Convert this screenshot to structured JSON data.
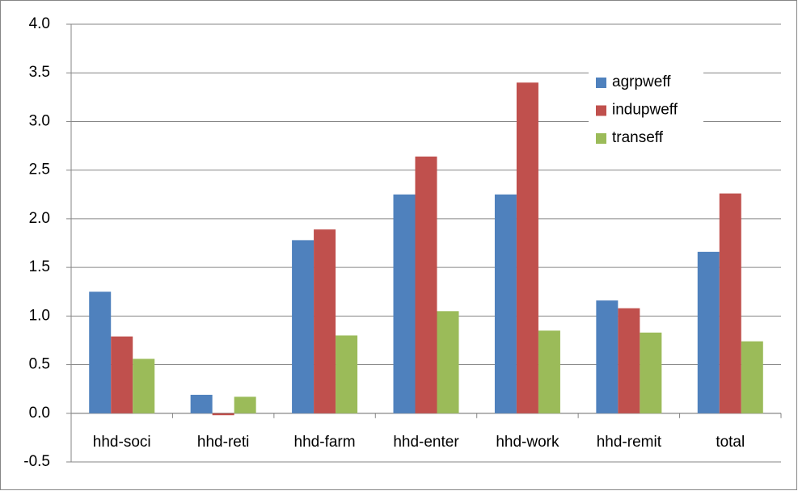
{
  "chart_data": {
    "type": "bar",
    "categories": [
      "hhd-soci",
      "hhd-reti",
      "hhd-farm",
      "hhd-enter",
      "hhd-work",
      "hhd-remit",
      "total"
    ],
    "series": [
      {
        "name": "agrpweff",
        "color": "#4f81bd",
        "values": [
          1.25,
          0.19,
          1.78,
          2.25,
          2.25,
          1.16,
          1.66
        ]
      },
      {
        "name": "indupweff",
        "color": "#c0504d",
        "values": [
          0.79,
          -0.02,
          1.89,
          2.64,
          3.4,
          1.08,
          2.26
        ]
      },
      {
        "name": "transeff",
        "color": "#9bbb59",
        "values": [
          0.56,
          0.17,
          0.8,
          1.05,
          0.85,
          0.83,
          0.74
        ]
      }
    ],
    "ylim": [
      -0.5,
      4
    ],
    "yticks": [
      -0.5,
      {
        "value": 0,
        "label": "0.0"
      },
      0.5,
      {
        "value": 1,
        "label": "1.0"
      },
      1.5,
      {
        "value": 2,
        "label": "2.0"
      },
      2.5,
      {
        "value": 3,
        "label": "3.0"
      },
      3.5,
      {
        "value": 4,
        "label": "4.0"
      }
    ],
    "grid": true,
    "legend": "upper-right"
  }
}
